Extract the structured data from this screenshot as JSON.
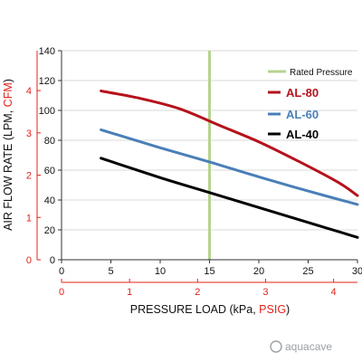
{
  "chart_data": {
    "type": "line",
    "x_label": "PRESSURE LOAD (kPa, ",
    "x_label_secondary": "PSIG",
    "x_label_close": ")",
    "y_label": "AIR FLOW RATE (LPM, ",
    "y_label_secondary": "CFM",
    "y_label_close": ")",
    "x_ticks": [
      "0",
      "5",
      "10",
      "15",
      "20",
      "25",
      "30"
    ],
    "x_ticks_secondary": [
      "0",
      "1",
      "2",
      "3",
      "4"
    ],
    "y_ticks": [
      "0",
      "20",
      "40",
      "60",
      "80",
      "100",
      "120",
      "140"
    ],
    "y_ticks_secondary": [
      "0",
      "1",
      "2",
      "3",
      "4"
    ],
    "xlim": [
      0,
      30
    ],
    "ylim": [
      0,
      140
    ],
    "secondary_x_per_unit_kpa": 6.895,
    "secondary_y_per_unit_lpm": 28.317,
    "grid": "horizontal",
    "legend_position": "top-right",
    "rated_pressure": {
      "name": "Rated Pressure",
      "x": 15,
      "color": "#b5d38f"
    },
    "series": [
      {
        "name": "AL-80",
        "color": "#b5121b",
        "x": [
          4,
          8,
          12,
          16,
          20,
          24,
          28,
          30
        ],
        "y": [
          113,
          108,
          101,
          90,
          79,
          66,
          52,
          43
        ]
      },
      {
        "name": "AL-60",
        "color": "#4a7fb8",
        "x": [
          4,
          10,
          15,
          20,
          25,
          30
        ],
        "y": [
          87,
          75,
          65.5,
          55.5,
          46,
          37
        ]
      },
      {
        "name": "AL-40",
        "color": "#000000",
        "x": [
          4,
          10,
          15,
          20,
          25,
          30
        ],
        "y": [
          68,
          55,
          45,
          35,
          25,
          15
        ]
      }
    ],
    "colors": {
      "primary_axis": "#333333",
      "secondary_axis": "#e2231a",
      "grid": "#d9d9d9"
    }
  },
  "watermark": "aquacave"
}
